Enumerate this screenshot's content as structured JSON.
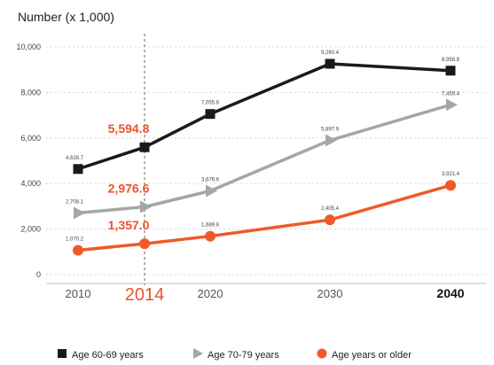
{
  "chart_data": {
    "type": "line",
    "title": "Number (x 1,000)",
    "x": [
      2010,
      2014,
      2020,
      2030,
      2040
    ],
    "x_tick_labels": [
      "2010",
      "2014",
      "2020",
      "2030",
      "2040"
    ],
    "highlight_x": "2014",
    "bold_x": "2040",
    "ylim": [
      0,
      10000
    ],
    "y_ticks": [
      0,
      2000,
      4000,
      6000,
      8000,
      10000
    ],
    "y_tick_labels": [
      "0",
      "2,000",
      "4,000",
      "6,000",
      "8,000",
      "10,000"
    ],
    "grid": true,
    "legend_position": "bottom",
    "series": [
      {
        "name": "Age 60-69 years",
        "color": "#1a1a1a",
        "marker": "square",
        "values": [
          4639.7,
          5594.8,
          7055.6,
          9260.4,
          8958.8
        ],
        "labels": [
          "4,639.7",
          "5,594.8",
          "7,055.6",
          "9,260.4",
          "8,958.8"
        ]
      },
      {
        "name": "Age 70-79 years",
        "color": "#a6a6a6",
        "marker": "triangle",
        "values": [
          2708.1,
          2976.6,
          3676.6,
          5897.9,
          7459.4
        ],
        "labels": [
          "2,708.1",
          "2,976.6",
          "3,676.6",
          "5,897.9",
          "7,459.4"
        ]
      },
      {
        "name": "Age years or older",
        "color": "#ef5a28",
        "marker": "circle",
        "values": [
          1070.2,
          1357.0,
          1689.8,
          2405.4,
          3921.4
        ],
        "labels": [
          "1,070.2",
          "1,357.0",
          "1,689.8",
          "2,405.4",
          "3,921.4"
        ]
      }
    ]
  }
}
